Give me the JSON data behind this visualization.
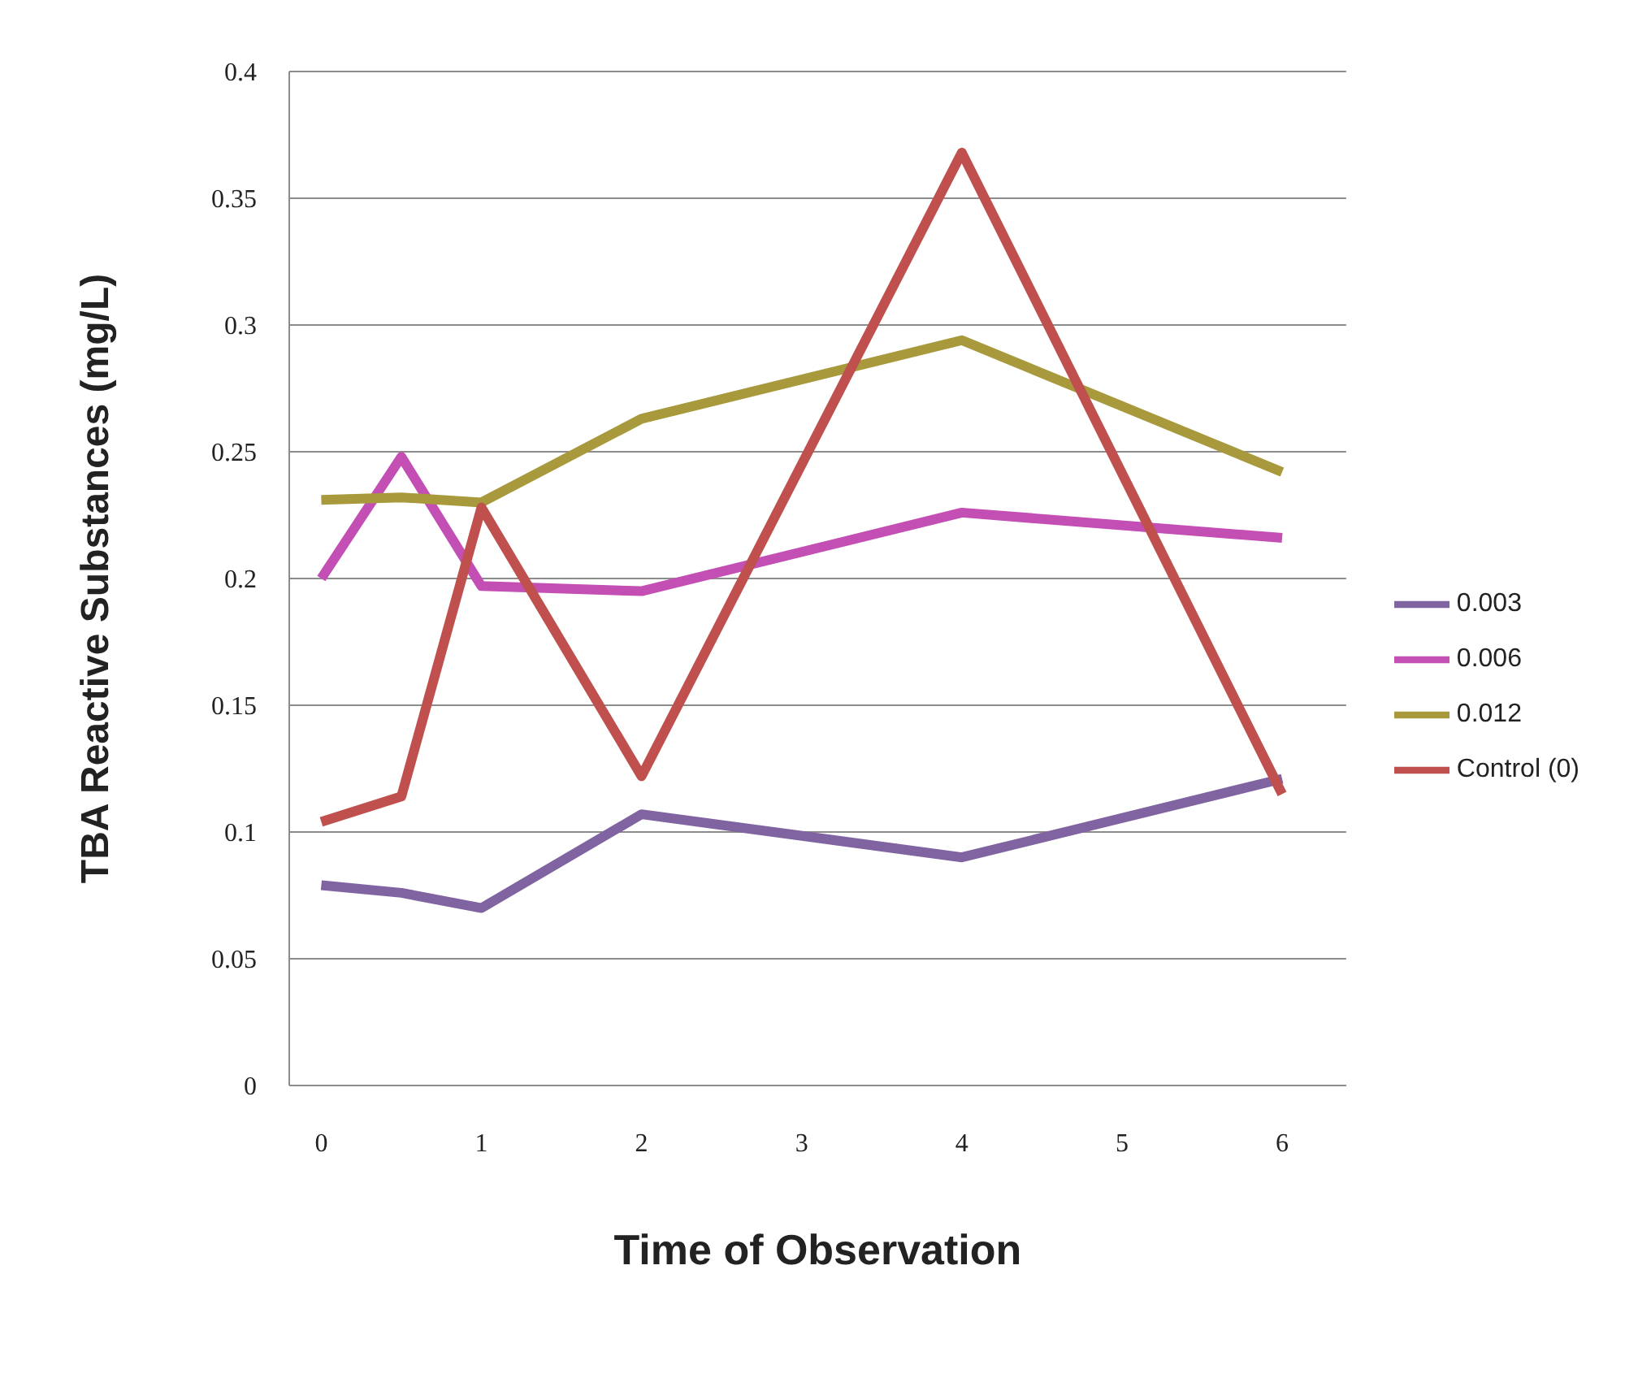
{
  "chart_data": {
    "type": "line",
    "xlabel": "Time of Observation",
    "ylabel": "TBA Reactive Substances (mg/L)",
    "x": [
      0,
      0.5,
      1,
      2,
      4,
      6
    ],
    "series": [
      {
        "name": "0.003",
        "color": "#8064a2",
        "values": [
          0.079,
          0.076,
          0.07,
          0.107,
          0.09,
          0.121
        ]
      },
      {
        "name": "0.006",
        "color": "#c44fb4",
        "values": [
          0.2,
          0.248,
          0.197,
          0.195,
          0.226,
          0.216
        ]
      },
      {
        "name": "0.012",
        "color": "#a89a3c",
        "values": [
          0.231,
          0.232,
          0.23,
          0.263,
          0.294,
          0.242
        ]
      },
      {
        "name": "Control (0)",
        "color": "#c0504d",
        "values": [
          0.104,
          0.114,
          0.228,
          0.122,
          0.368,
          0.115
        ]
      }
    ],
    "xlim": [
      -0.2,
      6.4
    ],
    "xticks": [
      0,
      1,
      2,
      3,
      4,
      5,
      6
    ],
    "ylim": [
      0,
      0.4
    ],
    "yticks": [
      0,
      0.05,
      0.1,
      0.15,
      0.2,
      0.25,
      0.3,
      0.35,
      0.4
    ],
    "grid": "y",
    "legend": "right",
    "marker": "none",
    "line_style": "solid"
  }
}
